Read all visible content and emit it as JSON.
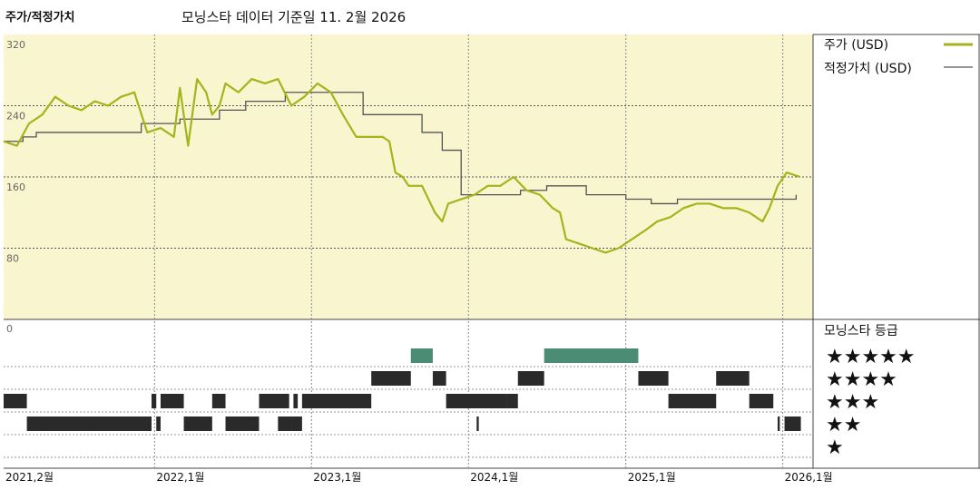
{
  "header": {
    "title": "주가/적정가치",
    "date_caption": "모닝스타 데이터 기준일 11. 2월 2026"
  },
  "legend": {
    "price_label": "주가 (USD)",
    "fair_value_label": "적정가치 (USD)",
    "rating_title": "모닝스타 등급"
  },
  "colors": {
    "price": "#a3b41c",
    "fair_value": "#555555",
    "plot_bg": "#f8f5cf",
    "rating_5": "#4a8c74",
    "rating_bar": "#2a2a2a"
  },
  "chart_data": {
    "type": "line",
    "ylim": [
      0,
      320
    ],
    "yticks": [
      {
        "value": 320,
        "label": "320"
      },
      {
        "value": 240,
        "label": "240"
      },
      {
        "value": 160,
        "label": "160"
      },
      {
        "value": 80,
        "label": "80"
      },
      {
        "value": 0,
        "label": "0"
      }
    ],
    "xlim": [
      "2021-01-15",
      "2026-02-15"
    ],
    "xticks": [
      {
        "date": "2021-01-15",
        "label": "2021,2월"
      },
      {
        "date": "2022-01-01",
        "label": "2022,1월"
      },
      {
        "date": "2023-01-01",
        "label": "2023,1월"
      },
      {
        "date": "2024-01-01",
        "label": "2024,1월"
      },
      {
        "date": "2025-01-01",
        "label": "2025,1월"
      },
      {
        "date": "2026-01-01",
        "label": "2026,1월"
      }
    ],
    "series": [
      {
        "name": "주가 (USD)",
        "x": [
          "2021-01-15",
          "2021-02-15",
          "2021-03-15",
          "2021-04-15",
          "2021-05-15",
          "2021-06-15",
          "2021-07-15",
          "2021-08-15",
          "2021-09-15",
          "2021-10-15",
          "2021-11-15",
          "2021-12-15",
          "2022-01-15",
          "2022-02-15",
          "2022-03-01",
          "2022-03-20",
          "2022-04-10",
          "2022-05-01",
          "2022-05-15",
          "2022-06-01",
          "2022-06-15",
          "2022-07-15",
          "2022-08-15",
          "2022-09-15",
          "2022-10-15",
          "2022-11-15",
          "2022-12-15",
          "2023-01-15",
          "2023-02-15",
          "2023-03-15",
          "2023-04-15",
          "2023-05-15",
          "2023-06-15",
          "2023-07-01",
          "2023-07-15",
          "2023-08-01",
          "2023-08-15",
          "2023-09-15",
          "2023-10-15",
          "2023-11-01",
          "2023-11-15",
          "2023-12-15",
          "2024-01-15",
          "2024-02-15",
          "2024-03-15",
          "2024-04-15",
          "2024-05-15",
          "2024-06-15",
          "2024-07-15",
          "2024-08-01",
          "2024-08-15",
          "2024-09-15",
          "2024-10-15",
          "2024-11-15",
          "2024-12-15",
          "2025-01-15",
          "2025-02-15",
          "2025-03-15",
          "2025-04-15",
          "2025-05-15",
          "2025-06-15",
          "2025-07-15",
          "2025-08-15",
          "2025-09-15",
          "2025-10-15",
          "2025-11-15",
          "2025-12-01",
          "2025-12-20",
          "2026-01-10",
          "2026-02-10"
        ],
        "values": [
          200,
          195,
          220,
          230,
          250,
          240,
          235,
          245,
          240,
          250,
          255,
          210,
          215,
          205,
          260,
          195,
          270,
          255,
          230,
          240,
          265,
          255,
          270,
          265,
          270,
          240,
          250,
          265,
          255,
          230,
          205,
          205,
          205,
          200,
          165,
          160,
          150,
          150,
          120,
          110,
          130,
          135,
          140,
          150,
          150,
          160,
          145,
          140,
          125,
          120,
          90,
          85,
          80,
          75,
          80,
          90,
          100,
          110,
          115,
          125,
          130,
          130,
          125,
          125,
          120,
          110,
          125,
          150,
          165,
          160
        ]
      },
      {
        "name": "적정가치 (USD)",
        "x": [
          "2021-01-15",
          "2021-03-01",
          "2021-04-01",
          "2021-06-01",
          "2021-08-01",
          "2021-12-01",
          "2022-03-01",
          "2022-06-01",
          "2022-08-01",
          "2022-11-01",
          "2023-01-15",
          "2023-04-01",
          "2023-05-01",
          "2023-07-01",
          "2023-09-15",
          "2023-11-01",
          "2023-12-15",
          "2024-02-01",
          "2024-05-01",
          "2024-07-01",
          "2024-08-01",
          "2024-10-01",
          "2025-01-01",
          "2025-03-01",
          "2025-05-01",
          "2025-07-01",
          "2025-10-01",
          "2026-02-01"
        ],
        "values": [
          200,
          205,
          210,
          210,
          210,
          220,
          225,
          235,
          245,
          255,
          255,
          255,
          230,
          230,
          210,
          190,
          140,
          140,
          145,
          150,
          150,
          140,
          135,
          130,
          135,
          135,
          135,
          140
        ]
      }
    ]
  },
  "rating_data": {
    "star_labels": [
      "★★★★★",
      "★★★★",
      "★★★",
      "★★",
      "★"
    ],
    "segments": [
      {
        "stars": 3,
        "start": "2021-01-15",
        "end": "2021-03-10"
      },
      {
        "stars": 2,
        "start": "2021-03-10",
        "end": "2021-12-25"
      },
      {
        "stars": 3,
        "start": "2021-12-25",
        "end": "2022-01-05"
      },
      {
        "stars": 2,
        "start": "2022-01-05",
        "end": "2022-01-15"
      },
      {
        "stars": 3,
        "start": "2022-01-15",
        "end": "2022-03-10"
      },
      {
        "stars": 2,
        "start": "2022-03-10",
        "end": "2022-05-15"
      },
      {
        "stars": 3,
        "start": "2022-05-15",
        "end": "2022-06-15"
      },
      {
        "stars": 2,
        "start": "2022-06-15",
        "end": "2022-09-01"
      },
      {
        "stars": 3,
        "start": "2022-09-01",
        "end": "2022-11-10"
      },
      {
        "stars": 3,
        "start": "2022-11-20",
        "end": "2022-11-30"
      },
      {
        "stars": 2,
        "start": "2022-10-15",
        "end": "2022-11-15"
      },
      {
        "stars": 2,
        "start": "2022-11-15",
        "end": "2022-12-10"
      },
      {
        "stars": 3,
        "start": "2022-12-10",
        "end": "2023-05-20"
      },
      {
        "stars": 4,
        "start": "2023-05-20",
        "end": "2023-08-20"
      },
      {
        "stars": 5,
        "start": "2023-08-20",
        "end": "2023-10-10"
      },
      {
        "stars": 4,
        "start": "2023-10-10",
        "end": "2023-11-10"
      },
      {
        "stars": 3,
        "start": "2023-11-10",
        "end": "2024-03-30"
      },
      {
        "stars": 2,
        "start": "2024-01-20",
        "end": "2024-01-25"
      },
      {
        "stars": 3,
        "start": "2024-03-30",
        "end": "2024-04-25"
      },
      {
        "stars": 4,
        "start": "2024-04-25",
        "end": "2024-06-25"
      },
      {
        "stars": 5,
        "start": "2024-06-25",
        "end": "2025-01-30"
      },
      {
        "stars": 4,
        "start": "2025-01-30",
        "end": "2025-04-10"
      },
      {
        "stars": 3,
        "start": "2025-04-10",
        "end": "2025-07-30"
      },
      {
        "stars": 4,
        "start": "2025-07-30",
        "end": "2025-10-15"
      },
      {
        "stars": 3,
        "start": "2025-10-15",
        "end": "2025-12-10"
      },
      {
        "stars": 2,
        "start": "2025-12-20",
        "end": "2025-12-25"
      },
      {
        "stars": 2,
        "start": "2026-01-05",
        "end": "2026-02-12"
      }
    ]
  }
}
